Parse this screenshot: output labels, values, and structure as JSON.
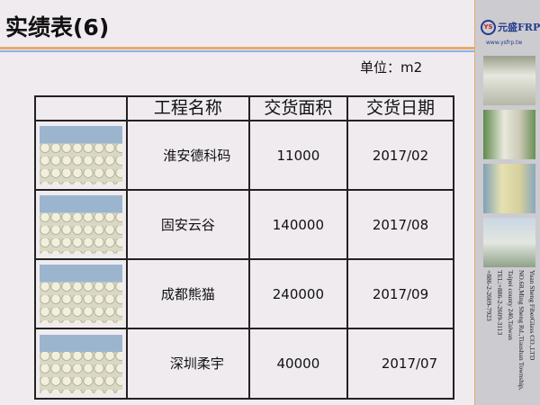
{
  "title": "实绩表(6)",
  "unit_label": "单位：m2",
  "table": {
    "headers": [
      "",
      "工程名称",
      "交货面积",
      "交货日期"
    ],
    "rows": [
      {
        "name": "淮安德科码",
        "area": "11000",
        "date": "2017/02"
      },
      {
        "name": "固安云谷",
        "area": "140000",
        "date": "2017/08"
      },
      {
        "name": "成都熊猫",
        "area": "240000",
        "date": "2017/09"
      },
      {
        "name": "深圳柔宇",
        "area": "40000",
        "date": "2017/07"
      }
    ]
  },
  "sidebar": {
    "logo_mark": "YS",
    "brand": "元盛FRP",
    "url": "www.ysfrp.tw",
    "address": [
      "Yuan Sheng FiberGlass CO.,LTD",
      "NO.68,Ming Sheng Rd.,Tiaushan Township,",
      "Taipei county 240,Taiwan",
      "TEL:+886-2-2609-3113",
      "+886-2-2609-7923"
    ]
  },
  "colors": {
    "accent_orange": "#e7ab6c",
    "accent_blue": "#8fb0e8",
    "brand_blue": "#223b8a"
  }
}
